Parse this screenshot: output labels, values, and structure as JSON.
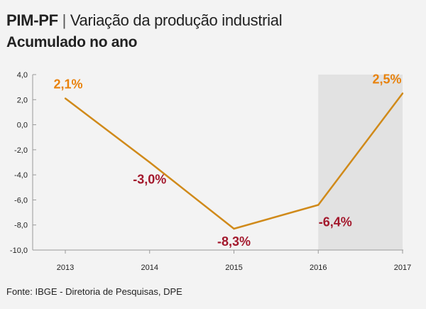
{
  "header": {
    "code": "PIM-PF",
    "separator": "|",
    "title": "Variação da produção industrial",
    "subtitle": "Acumulado no ano"
  },
  "source": "Fonte: IBGE - Diretoria de Pesquisas, DPE",
  "colors": {
    "line": "#d08a1a",
    "positive_label": "#e8820c",
    "negative_label": "#a3182c",
    "highlight_band": "#e2e2e2",
    "axis": "#9a9a9a",
    "text": "#222222"
  },
  "chart_data": {
    "type": "line",
    "x": [
      "2013",
      "2014",
      "2015",
      "2016",
      "2017"
    ],
    "series": [
      {
        "values": [
          2.1,
          -3.0,
          -8.3,
          -6.4,
          2.5
        ]
      }
    ],
    "data_labels": [
      "2,1%",
      "-3,0%",
      "-8,3%",
      "-6,4%",
      "2,5%"
    ],
    "y_ticks": [
      4,
      2,
      0,
      -2,
      -4,
      -6,
      -8,
      -10
    ],
    "y_tick_labels": [
      "4,0",
      "2,0",
      "0,0",
      "-2,0",
      "-4,0",
      "-6,0",
      "-8,0",
      "-10,0"
    ],
    "ylim": [
      -10,
      4
    ],
    "highlight_band": [
      "2016",
      "2017"
    ],
    "grid": false,
    "title": "Variação da produção industrial",
    "xlabel": "",
    "ylabel": ""
  }
}
